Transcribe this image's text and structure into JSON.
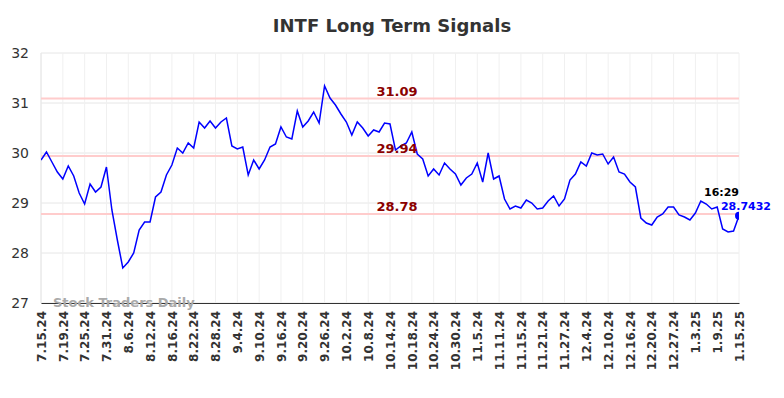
{
  "chart_data": {
    "type": "line",
    "title": "INTF Long Term Signals",
    "watermark": "Stock Traders Daily",
    "last_time": "16:29",
    "color": "#0000ff",
    "levels": [
      31.09,
      29.94,
      28.78
    ],
    "ylim": [
      27,
      32
    ],
    "yticks": [
      27,
      28,
      29,
      30,
      31,
      32
    ],
    "grid": true,
    "categories": [
      "7.15.24",
      null,
      null,
      null,
      "7.19.24",
      null,
      null,
      null,
      "7.25.24",
      null,
      null,
      null,
      "7.31.24",
      null,
      null,
      null,
      "8.6.24",
      null,
      null,
      null,
      "8.12.24",
      null,
      null,
      null,
      "8.16.24",
      null,
      null,
      null,
      "8.22.24",
      null,
      null,
      null,
      "8.28.24",
      null,
      null,
      null,
      "9.4.24",
      null,
      null,
      null,
      "9.10.24",
      null,
      null,
      null,
      "9.16.24",
      null,
      null,
      null,
      "9.20.24",
      null,
      null,
      null,
      "9.26.24",
      null,
      null,
      null,
      "10.2.24",
      null,
      null,
      null,
      "10.8.24",
      null,
      null,
      null,
      "10.14.24",
      null,
      null,
      null,
      "10.18.24",
      null,
      null,
      null,
      "10.24.24",
      null,
      null,
      null,
      "10.30.24",
      null,
      null,
      null,
      "11.5.24",
      null,
      null,
      null,
      "11.11.24",
      null,
      null,
      null,
      "11.15.24",
      null,
      null,
      null,
      "11.21.24",
      null,
      null,
      null,
      "11.27.24",
      null,
      null,
      null,
      "12.4.24",
      null,
      null,
      null,
      "12.10.24",
      null,
      null,
      null,
      "12.16.24",
      null,
      null,
      null,
      "12.20.24",
      null,
      null,
      null,
      "12.27.24",
      null,
      null,
      null,
      "1.3.25",
      null,
      null,
      null,
      "1.9.25",
      null,
      null,
      null,
      "1.15.25"
    ],
    "values": [
      29.86,
      30.02,
      29.82,
      29.62,
      29.48,
      29.74,
      29.54,
      29.2,
      28.98,
      29.38,
      29.22,
      29.32,
      29.72,
      28.86,
      28.26,
      27.7,
      27.82,
      28.0,
      28.46,
      28.62,
      28.62,
      29.12,
      29.22,
      29.56,
      29.76,
      30.1,
      30.0,
      30.2,
      30.1,
      30.62,
      30.5,
      30.64,
      30.5,
      30.62,
      30.7,
      30.14,
      30.08,
      30.12,
      29.56,
      29.86,
      29.68,
      29.86,
      30.12,
      30.18,
      30.52,
      30.32,
      30.28,
      30.84,
      30.52,
      30.64,
      30.82,
      30.6,
      31.34,
      31.1,
      30.96,
      30.78,
      30.62,
      30.36,
      30.62,
      30.5,
      30.34,
      30.46,
      30.42,
      30.6,
      30.58,
      30.06,
      30.14,
      30.2,
      30.42,
      29.98,
      29.88,
      29.54,
      29.68,
      29.56,
      29.8,
      29.68,
      29.58,
      29.36,
      29.5,
      29.58,
      29.8,
      29.42,
      30.0,
      29.48,
      29.54,
      29.08,
      28.88,
      28.94,
      28.9,
      29.06,
      29.0,
      28.88,
      28.9,
      29.04,
      29.14,
      28.94,
      29.08,
      29.46,
      29.58,
      29.82,
      29.74,
      30.0,
      29.96,
      29.98,
      29.78,
      29.92,
      29.62,
      29.58,
      29.42,
      29.32,
      28.7,
      28.6,
      28.56,
      28.72,
      28.78,
      28.92,
      28.92,
      28.76,
      28.72,
      28.66,
      28.8,
      29.04,
      28.98,
      28.88,
      28.92,
      28.48,
      28.42,
      28.44,
      28.7432
    ]
  }
}
